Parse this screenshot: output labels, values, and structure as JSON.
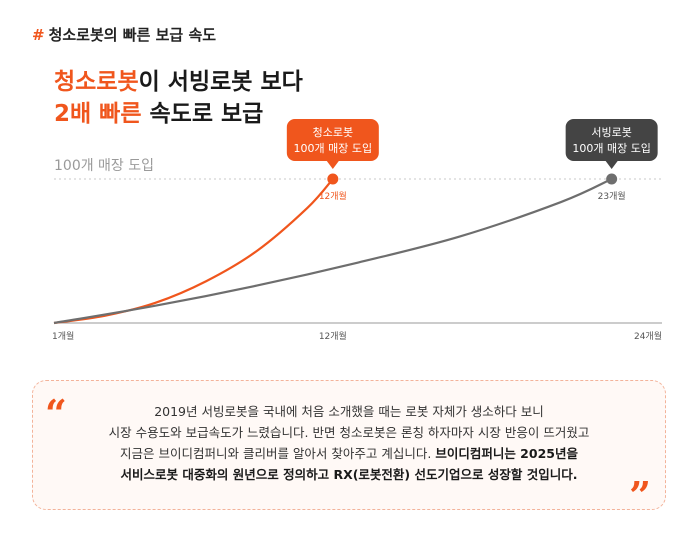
{
  "section_tag": {
    "hash": "#",
    "text": "청소로봇의 빠른 보급 속도"
  },
  "headline": {
    "line1_accent": "청소로봇",
    "line1_rest": "이 서빙로봇 보다",
    "line2_accent": "2배 빠른",
    "line2_rest": " 속도로 보급"
  },
  "chart_data": {
    "type": "line",
    "reference_label": "100개 매장 도입",
    "reference_y": 100,
    "x_ticks": [
      "1개월",
      "12개월",
      "24개월"
    ],
    "x_tick_values": [
      1,
      12,
      24
    ],
    "xlim": [
      1,
      24
    ],
    "ylim": [
      0,
      100
    ],
    "series": [
      {
        "name": "청소로봇",
        "color": "#f0561d",
        "x": [
          1,
          3,
          5,
          7,
          9,
          11,
          12
        ],
        "y": [
          0,
          5,
          14,
          29,
          50,
          80,
          100
        ],
        "endpoint_label": "12개월",
        "callout": [
          "청소로봇",
          "100개 매장 도입"
        ]
      },
      {
        "name": "서빙로봇",
        "color": "#6e6e6e",
        "x": [
          1,
          5,
          9,
          13,
          17,
          21,
          23
        ],
        "y": [
          0,
          12,
          26,
          42,
          60,
          84,
          100
        ],
        "endpoint_label": "23개월",
        "callout": [
          "서빙로봇",
          "100개 매장 도입"
        ]
      }
    ]
  },
  "quote": {
    "open_mark": "“",
    "close_mark": "”",
    "line1": "2019년 서빙로봇을 국내에 처음 소개했을 때는 로봇 자체가 생소하다 보니",
    "line2": "시장 수용도와 보급속도가 느렸습니다. 반면 청소로봇은 론칭 하자마자 시장 반응이 뜨거웠고",
    "line3_plain": "지금은 브이디컴퍼니와 클리버를 알아서 찾아주고 계십니다. ",
    "line3_bold": "브이디컴퍼니는 2025년을",
    "line4_bold": "서비스로봇 대중화의 원년으로 정의하고 RX(로봇전환) 선도기업으로 성장할 것입니다."
  }
}
